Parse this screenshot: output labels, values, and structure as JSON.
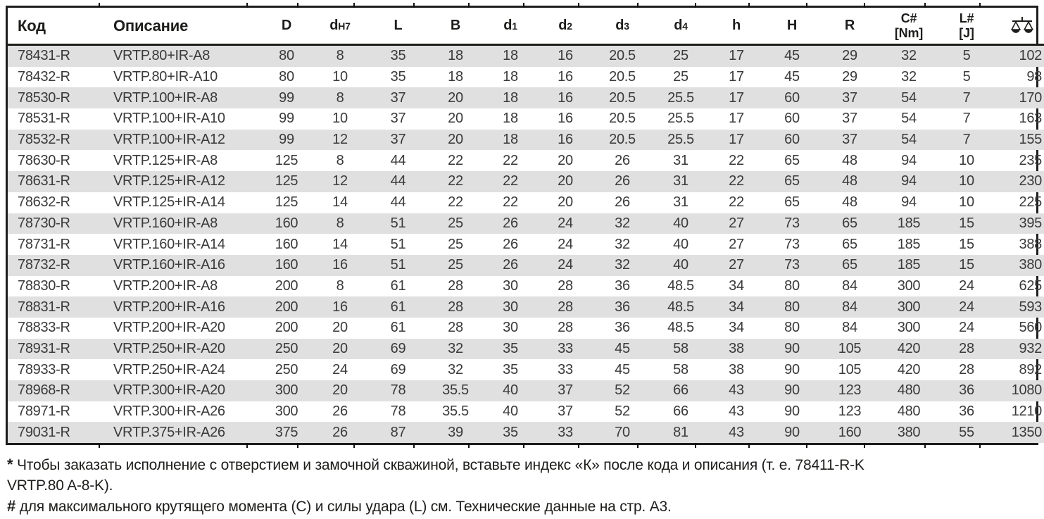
{
  "table": {
    "columns": [
      {
        "id": "code",
        "label": "Код",
        "align": "left"
      },
      {
        "id": "desc",
        "label": "Описание",
        "align": "left"
      },
      {
        "id": "D",
        "label": "D"
      },
      {
        "id": "dH7",
        "label": "d",
        "small": "H7"
      },
      {
        "id": "L",
        "label": "L"
      },
      {
        "id": "B",
        "label": "B"
      },
      {
        "id": "d1",
        "label": "d",
        "small": "1"
      },
      {
        "id": "d2",
        "label": "d",
        "small": "2"
      },
      {
        "id": "d3",
        "label": "d",
        "small": "3"
      },
      {
        "id": "d4",
        "label": "d",
        "small": "4"
      },
      {
        "id": "h",
        "label": "h"
      },
      {
        "id": "H",
        "label": "H"
      },
      {
        "id": "R",
        "label": "R"
      },
      {
        "id": "C_Nm",
        "label": "C#",
        "unit": "[Nm]"
      },
      {
        "id": "L_J",
        "label": "L#",
        "unit": "[J]"
      },
      {
        "id": "weight",
        "icon": "weight-scale-icon",
        "align": "right"
      }
    ],
    "rows": [
      [
        "78431-R",
        "VRTP.80+IR-A8",
        "80",
        "8",
        "35",
        "18",
        "18",
        "16",
        "20.5",
        "25",
        "17",
        "45",
        "29",
        "32",
        "5",
        "102"
      ],
      [
        "78432-R",
        "VRTP.80+IR-A10",
        "80",
        "10",
        "35",
        "18",
        "18",
        "16",
        "20.5",
        "25",
        "17",
        "45",
        "29",
        "32",
        "5",
        "98"
      ],
      [
        "78530-R",
        "VRTP.100+IR-A8",
        "99",
        "8",
        "37",
        "20",
        "18",
        "16",
        "20.5",
        "25.5",
        "17",
        "60",
        "37",
        "54",
        "7",
        "170"
      ],
      [
        "78531-R",
        "VRTP.100+IR-A10",
        "99",
        "10",
        "37",
        "20",
        "18",
        "16",
        "20.5",
        "25.5",
        "17",
        "60",
        "37",
        "54",
        "7",
        "163"
      ],
      [
        "78532-R",
        "VRTP.100+IR-A12",
        "99",
        "12",
        "37",
        "20",
        "18",
        "16",
        "20.5",
        "25.5",
        "17",
        "60",
        "37",
        "54",
        "7",
        "155"
      ],
      [
        "78630-R",
        "VRTP.125+IR-A8",
        "125",
        "8",
        "44",
        "22",
        "22",
        "20",
        "26",
        "31",
        "22",
        "65",
        "48",
        "94",
        "10",
        "235"
      ],
      [
        "78631-R",
        "VRTP.125+IR-A12",
        "125",
        "12",
        "44",
        "22",
        "22",
        "20",
        "26",
        "31",
        "22",
        "65",
        "48",
        "94",
        "10",
        "230"
      ],
      [
        "78632-R",
        "VRTP.125+IR-A14",
        "125",
        "14",
        "44",
        "22",
        "22",
        "20",
        "26",
        "31",
        "22",
        "65",
        "48",
        "94",
        "10",
        "225"
      ],
      [
        "78730-R",
        "VRTP.160+IR-A8",
        "160",
        "8",
        "51",
        "25",
        "26",
        "24",
        "32",
        "40",
        "27",
        "73",
        "65",
        "185",
        "15",
        "395"
      ],
      [
        "78731-R",
        "VRTP.160+IR-A14",
        "160",
        "14",
        "51",
        "25",
        "26",
        "24",
        "32",
        "40",
        "27",
        "73",
        "65",
        "185",
        "15",
        "388"
      ],
      [
        "78732-R",
        "VRTP.160+IR-A16",
        "160",
        "16",
        "51",
        "25",
        "26",
        "24",
        "32",
        "40",
        "27",
        "73",
        "65",
        "185",
        "15",
        "380"
      ],
      [
        "78830-R",
        "VRTP.200+IR-A8",
        "200",
        "8",
        "61",
        "28",
        "30",
        "28",
        "36",
        "48.5",
        "34",
        "80",
        "84",
        "300",
        "24",
        "625"
      ],
      [
        "78831-R",
        "VRTP.200+IR-A16",
        "200",
        "16",
        "61",
        "28",
        "30",
        "28",
        "36",
        "48.5",
        "34",
        "80",
        "84",
        "300",
        "24",
        "593"
      ],
      [
        "78833-R",
        "VRTP.200+IR-A20",
        "200",
        "20",
        "61",
        "28",
        "30",
        "28",
        "36",
        "48.5",
        "34",
        "80",
        "84",
        "300",
        "24",
        "560"
      ],
      [
        "78931-R",
        "VRTP.250+IR-A20",
        "250",
        "20",
        "69",
        "32",
        "35",
        "33",
        "45",
        "58",
        "38",
        "90",
        "105",
        "420",
        "28",
        "932"
      ],
      [
        "78933-R",
        "VRTP.250+IR-A24",
        "250",
        "24",
        "69",
        "32",
        "35",
        "33",
        "45",
        "58",
        "38",
        "90",
        "105",
        "420",
        "28",
        "892"
      ],
      [
        "78968-R",
        "VRTP.300+IR-A20",
        "300",
        "20",
        "78",
        "35.5",
        "40",
        "37",
        "52",
        "66",
        "43",
        "90",
        "123",
        "480",
        "36",
        "1080"
      ],
      [
        "78971-R",
        "VRTP.300+IR-A26",
        "300",
        "26",
        "78",
        "35.5",
        "40",
        "37",
        "52",
        "66",
        "43",
        "90",
        "123",
        "480",
        "36",
        "1210"
      ],
      [
        "79031-R",
        "VRTP.375+IR-A26",
        "375",
        "26",
        "87",
        "39",
        "35",
        "33",
        "70",
        "81",
        "43",
        "90",
        "160",
        "380",
        "55",
        "1350"
      ]
    ]
  },
  "footnotes": {
    "star": {
      "marker": "*",
      "line1": "Чтобы заказать исполнение с отверстием и замочной скважиной, вставьте индекс «К» после кода и описания (т. е. 78411-R-K",
      "line2": "VRTP.80 A-8-K)."
    },
    "hash": {
      "marker": "#",
      "text": "для максимального крутящего момента (C) и силы удара (L) см. Технические данные на стр. А3."
    }
  },
  "colors": {
    "stripe": "#e0e0e0",
    "border": "#1d1d1b",
    "body_text": "#3a3a3a"
  }
}
